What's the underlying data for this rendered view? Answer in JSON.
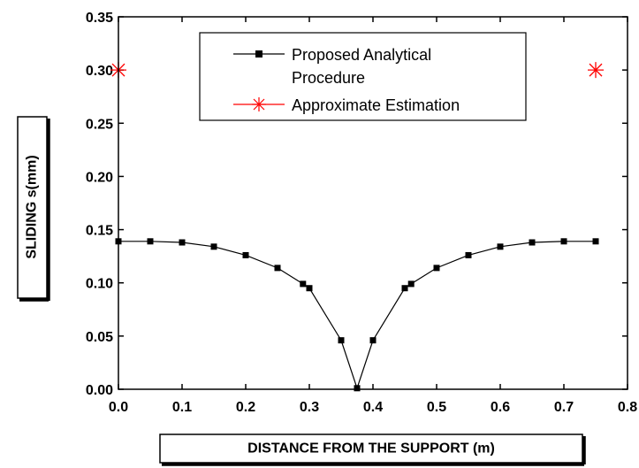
{
  "chart_data": {
    "type": "scatter",
    "xlabel": "DISTANCE FROM THE SUPPORT (m)",
    "ylabel": "SLIDING s(mm)",
    "xlim": [
      0.0,
      0.8
    ],
    "ylim": [
      0.0,
      0.35
    ],
    "xticks": [
      "0.0",
      "0.1",
      "0.2",
      "0.3",
      "0.4",
      "0.5",
      "0.6",
      "0.7",
      "0.8"
    ],
    "yticks": [
      "0.00",
      "0.05",
      "0.10",
      "0.15",
      "0.20",
      "0.25",
      "0.30",
      "0.35"
    ],
    "legend_position": "top-center",
    "series": [
      {
        "name": "Proposed Analytical Procedure",
        "style": "line-with-square-markers",
        "color": "#000000",
        "x": [
          0.0,
          0.05,
          0.1,
          0.15,
          0.2,
          0.25,
          0.29,
          0.3,
          0.35,
          0.375,
          0.4,
          0.45,
          0.46,
          0.5,
          0.55,
          0.6,
          0.65,
          0.7,
          0.75
        ],
        "y": [
          0.139,
          0.139,
          0.138,
          0.134,
          0.126,
          0.114,
          0.099,
          0.095,
          0.046,
          0.001,
          0.046,
          0.095,
          0.099,
          0.114,
          0.126,
          0.134,
          0.138,
          0.139,
          0.139
        ]
      },
      {
        "name": "Approximate Estimation",
        "style": "asterisk-markers",
        "color": "#ff0000",
        "x": [
          0.0,
          0.75
        ],
        "y": [
          0.3,
          0.3
        ]
      }
    ]
  }
}
